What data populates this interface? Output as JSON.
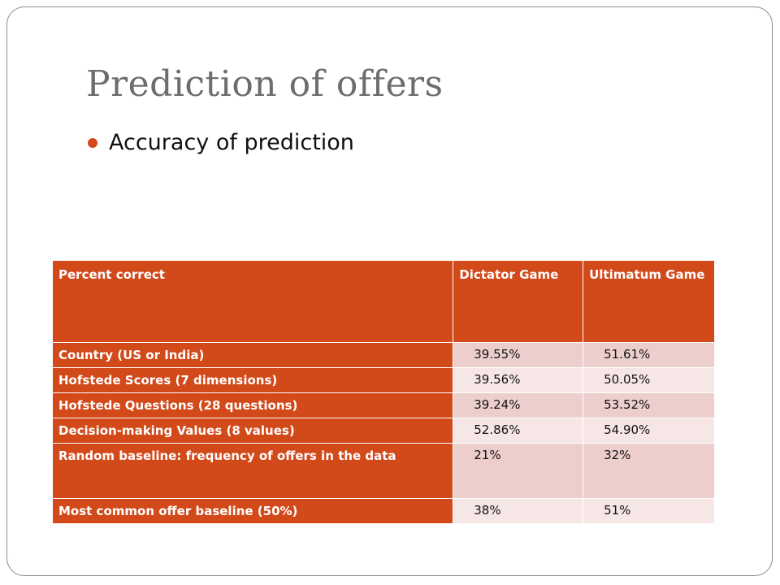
{
  "slide": {
    "title": "Prediction of offers",
    "bullet": "Accuracy of prediction"
  },
  "colors": {
    "accent": "#d2491a",
    "row_shade_dark": "#eccfcc",
    "row_shade_light": "#f6e7e6",
    "title_gray": "#6d6d6d"
  },
  "table": {
    "headers": [
      "Percent correct",
      "Dictator Game",
      "Ultimatum Game"
    ],
    "rows": [
      {
        "label": "Country (US or India)",
        "dictator": "39.55%",
        "ultimatum": "51.61%"
      },
      {
        "label": "Hofstede Scores (7 dimensions)",
        "dictator": "39.56%",
        "ultimatum": "50.05%"
      },
      {
        "label": "Hofstede Questions (28 questions)",
        "dictator": "39.24%",
        "ultimatum": "53.52%"
      },
      {
        "label": "Decision-making Values (8 values)",
        "dictator": "52.86%",
        "ultimatum": "54.90%"
      },
      {
        "label": "Random baseline: frequency of offers in the data",
        "dictator": "21%",
        "ultimatum": "32%"
      },
      {
        "label": "Most common offer baseline (50%)",
        "dictator": "38%",
        "ultimatum": "51%"
      }
    ]
  }
}
